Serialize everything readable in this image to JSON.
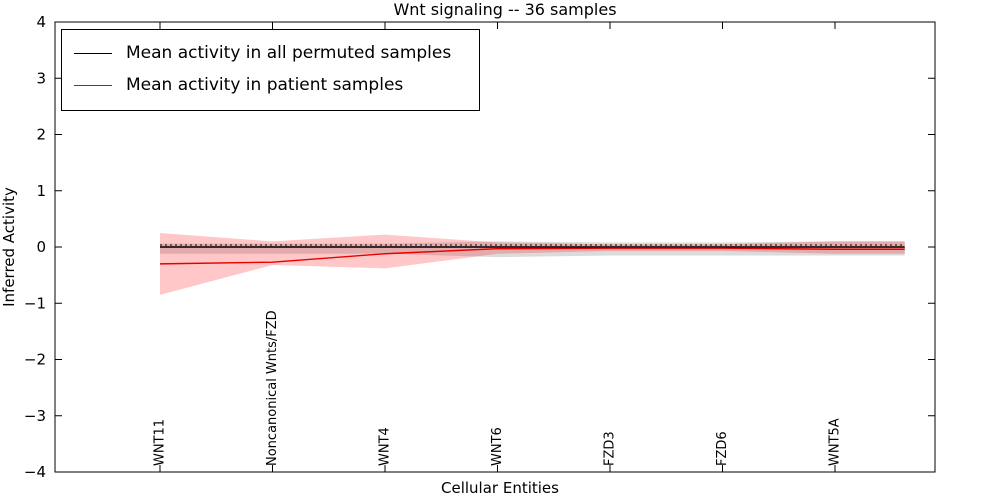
{
  "chart_data": {
    "type": "line",
    "title": "Wnt signaling -- 36 samples",
    "xlabel": "Cellular Entities",
    "ylabel": "Inferred Activity",
    "ylim": [
      -4,
      4
    ],
    "yticks": [
      4,
      3,
      2,
      1,
      0,
      -1,
      -2,
      -3,
      -4
    ],
    "grid": false,
    "legend_position": "upper left",
    "categories": [
      "WNT11",
      "Noncanonical Wnts/FZD",
      "WNT4",
      "WNT6",
      "FZD3",
      "FZD6",
      "WNT5A"
    ],
    "series": [
      {
        "name": "Mean activity in all permuted samples",
        "color": "#000000",
        "values": [
          0,
          0,
          0,
          0,
          0,
          0,
          0
        ],
        "band": {
          "lower": [
            -0.12,
            -0.12,
            -0.12,
            -0.18,
            -0.15,
            -0.15,
            -0.15
          ],
          "upper": [
            0.06,
            0.06,
            0.06,
            0.1,
            0.08,
            0.08,
            0.1
          ],
          "color": "#999999",
          "opacity": 0.35
        }
      },
      {
        "name": "Mean activity in patient samples",
        "color": "#e60000",
        "values": [
          -0.3,
          -0.27,
          -0.12,
          -0.03,
          -0.02,
          -0.02,
          -0.04
        ],
        "band": {
          "lower": [
            -0.85,
            -0.32,
            -0.38,
            -0.12,
            -0.07,
            -0.07,
            -0.12
          ],
          "upper": [
            0.25,
            0.1,
            0.22,
            0.08,
            0.05,
            0.05,
            0.1
          ],
          "color": "#ff0000",
          "opacity": 0.22
        }
      }
    ],
    "zero_line": {
      "style": "dotted",
      "value": 0
    }
  }
}
